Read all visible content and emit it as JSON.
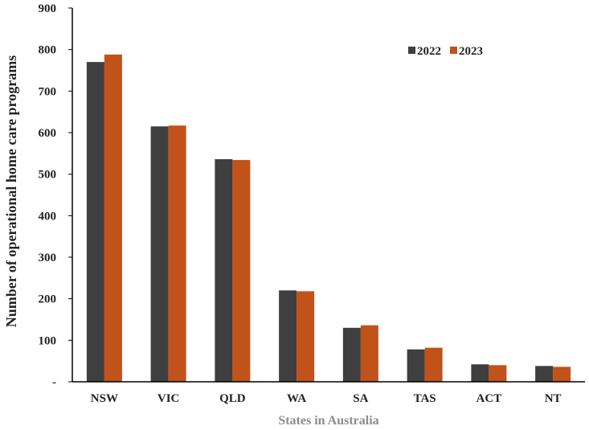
{
  "chart_data": {
    "type": "bar",
    "title": "",
    "xlabel": "States in Australia",
    "ylabel": "Number of operational home care programs",
    "categories": [
      "NSW",
      "VIC",
      "QLD",
      "WA",
      "SA",
      "TAS",
      "ACT",
      "NT"
    ],
    "series": [
      {
        "name": "2022",
        "color": "#3f3f3f",
        "values": [
          770,
          615,
          536,
          220,
          130,
          78,
          42,
          38
        ]
      },
      {
        "name": "2023",
        "color": "#c0521a",
        "values": [
          788,
          617,
          534,
          218,
          136,
          82,
          40,
          36
        ]
      }
    ],
    "ylim": [
      0,
      900
    ],
    "yticks": [
      "-",
      "100",
      "200",
      "300",
      "400",
      "500",
      "600",
      "700",
      "800",
      "900"
    ],
    "grid": false,
    "legend": "top-right"
  }
}
